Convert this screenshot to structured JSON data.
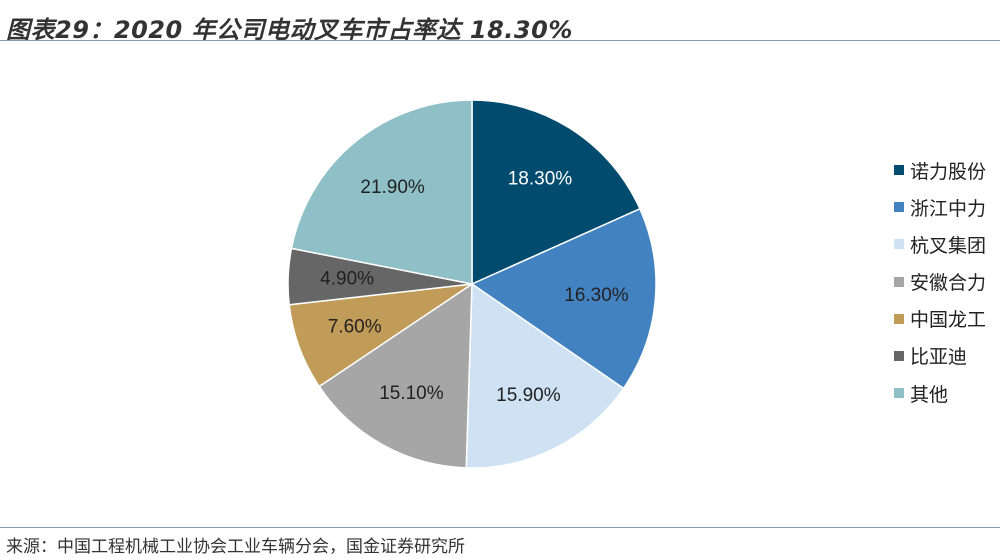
{
  "title": "图表29：2020 年公司电动叉车市占率达 18.30%",
  "source": "来源：中国工程机械工业协会工业车辆分会，国金证券研究所",
  "chart_data": {
    "type": "pie",
    "title": "图表29：2020 年公司电动叉车市占率达 18.30%",
    "legend_position": "right",
    "slices": [
      {
        "name": "诺力股份",
        "value": 18.3,
        "label": "18.30%",
        "color": "#004b6e",
        "label_color": "#ffffff"
      },
      {
        "name": "浙江中力",
        "value": 16.3,
        "label": "16.30%",
        "color": "#4382c1",
        "label_color": "#222222"
      },
      {
        "name": "杭叉集团",
        "value": 15.9,
        "label": "15.90%",
        "color": "#cfe2f3",
        "label_color": "#222222"
      },
      {
        "name": "安徽合力",
        "value": 15.1,
        "label": "15.10%",
        "color": "#a6a6a6",
        "label_color": "#222222"
      },
      {
        "name": "中国龙工",
        "value": 7.6,
        "label": "7.60%",
        "color": "#c19b58",
        "label_color": "#222222"
      },
      {
        "name": "比亚迪",
        "value": 4.9,
        "label": "4.90%",
        "color": "#666666",
        "label_color": "#222222"
      },
      {
        "name": "其他",
        "value": 21.9,
        "label": "21.90%",
        "color": "#8fc0c7",
        "label_color": "#222222"
      }
    ]
  }
}
